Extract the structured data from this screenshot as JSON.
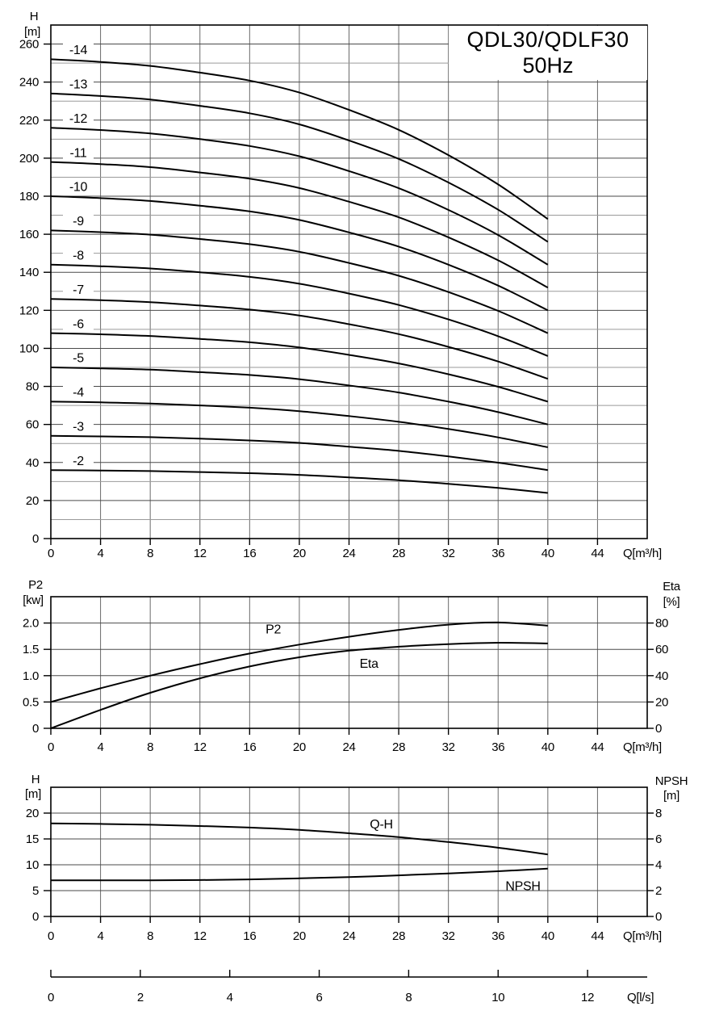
{
  "page": {
    "background": "#ffffff"
  },
  "colors": {
    "curve": "#000000",
    "border": "#000000",
    "grid_major": "#4a4a4a",
    "grid_minor": "#9a9a9a",
    "grid_vertical": "#6a6a6a",
    "tick": "#000000",
    "text": "#000000",
    "title_box_bg": "#ffffff"
  },
  "title": {
    "line1": "QDL30/QDLF30",
    "line2": "50Hz"
  },
  "chart_data": [
    {
      "id": "head-stage-curves",
      "type": "line",
      "title": "QDL30/QDLF30 50Hz",
      "xlabel": "Q[m³/h]",
      "ylabel_title": "H",
      "ylabel_unit": "[m]",
      "xlim": [
        0,
        48
      ],
      "ylim": [
        0,
        270
      ],
      "xticks": [
        0,
        4,
        8,
        12,
        16,
        20,
        24,
        28,
        32,
        36,
        40,
        44
      ],
      "yticks": [
        0,
        20,
        40,
        60,
        80,
        100,
        120,
        140,
        160,
        180,
        200,
        220,
        240,
        260
      ],
      "y_minor_step": 10,
      "grid": true,
      "x": [
        0,
        4,
        8,
        12,
        16,
        20,
        24,
        28,
        32,
        36,
        40
      ],
      "series": [
        {
          "name": "-14",
          "values": [
            252.0,
            250.6,
            248.5,
            245.0,
            240.8,
            234.5,
            225.4,
            214.9,
            201.6,
            186.2,
            168.0
          ]
        },
        {
          "name": "-13",
          "values": [
            234.0,
            232.7,
            230.8,
            227.5,
            223.6,
            217.8,
            209.3,
            199.6,
            187.2,
            172.9,
            156.0
          ]
        },
        {
          "name": "-12",
          "values": [
            216.0,
            214.8,
            213.0,
            210.0,
            206.4,
            201.0,
            193.2,
            184.2,
            172.8,
            159.6,
            144.0
          ]
        },
        {
          "name": "-11",
          "values": [
            198.0,
            196.9,
            195.3,
            192.5,
            189.2,
            184.3,
            177.1,
            168.9,
            158.4,
            146.3,
            132.0
          ]
        },
        {
          "name": "-10",
          "values": [
            180.0,
            179.0,
            177.5,
            175.0,
            172.0,
            167.5,
            161.0,
            153.5,
            144.0,
            133.0,
            120.0
          ]
        },
        {
          "name": "-9",
          "values": [
            162.0,
            161.1,
            159.8,
            157.5,
            154.8,
            150.8,
            144.9,
            138.2,
            129.6,
            119.7,
            108.0
          ]
        },
        {
          "name": "-8",
          "values": [
            144.0,
            143.2,
            142.0,
            140.0,
            137.6,
            134.0,
            128.8,
            122.8,
            115.2,
            106.4,
            96.0
          ]
        },
        {
          "name": "-7",
          "values": [
            126.0,
            125.3,
            124.3,
            122.5,
            120.4,
            117.3,
            112.7,
            107.5,
            100.8,
            93.1,
            84.0
          ]
        },
        {
          "name": "-6",
          "values": [
            108.0,
            107.4,
            106.5,
            105.0,
            103.2,
            100.5,
            96.6,
            92.1,
            86.4,
            79.8,
            72.0
          ]
        },
        {
          "name": "-5",
          "values": [
            90.0,
            89.5,
            88.8,
            87.5,
            86.0,
            83.8,
            80.5,
            76.8,
            72.0,
            66.5,
            60.0
          ]
        },
        {
          "name": "-4",
          "values": [
            72.0,
            71.6,
            71.0,
            70.0,
            68.8,
            67.0,
            64.4,
            61.4,
            57.6,
            53.2,
            48.0
          ]
        },
        {
          "name": "-3",
          "values": [
            54.0,
            53.7,
            53.3,
            52.5,
            51.6,
            50.3,
            48.3,
            46.1,
            43.2,
            39.9,
            36.0
          ]
        },
        {
          "name": "-2",
          "values": [
            36.0,
            35.8,
            35.5,
            35.0,
            34.4,
            33.5,
            32.2,
            30.7,
            28.8,
            26.6,
            24.0
          ]
        }
      ]
    },
    {
      "id": "power-efficiency",
      "type": "line",
      "xlabel": "Q[m³/h]",
      "left_axis": {
        "title": "P2",
        "unit": "[kw]",
        "lim": [
          0,
          2.5
        ],
        "ticks": [
          0,
          0.5,
          1.0,
          1.5,
          2.0
        ],
        "tick_labels": [
          "0",
          "0.5",
          "1.0",
          "1.5",
          "2.0"
        ]
      },
      "right_axis": {
        "title": "Eta",
        "unit": "[%]",
        "lim": [
          0,
          100
        ],
        "ticks": [
          0,
          20,
          40,
          60,
          80
        ],
        "tick_labels": [
          "0",
          "20",
          "40",
          "60",
          "80"
        ]
      },
      "xlim": [
        0,
        48
      ],
      "xticks": [
        0,
        4,
        8,
        12,
        16,
        20,
        24,
        28,
        32,
        36,
        40,
        44
      ],
      "grid": true,
      "x": [
        0,
        4,
        8,
        12,
        16,
        20,
        24,
        28,
        32,
        36,
        40
      ],
      "series": [
        {
          "name": "P2",
          "axis": "left",
          "label_x": 17.9,
          "label_y": 1.88,
          "values": [
            0.5,
            0.76,
            1.0,
            1.22,
            1.42,
            1.59,
            1.74,
            1.87,
            1.97,
            2.01,
            1.95
          ]
        },
        {
          "name": "Eta",
          "axis": "right",
          "label_x": 25.6,
          "label_y": 49.0,
          "values": [
            0,
            14,
            27,
            38,
            47,
            54,
            59,
            62,
            64,
            65,
            64.5
          ]
        }
      ]
    },
    {
      "id": "qh-npsh",
      "type": "line",
      "xlabel": "Q[m³/h]",
      "left_axis": {
        "title": "H",
        "unit": "[m]",
        "lim": [
          0,
          25
        ],
        "ticks": [
          0,
          5,
          10,
          15,
          20
        ],
        "tick_labels": [
          "0",
          "5",
          "10",
          "15",
          "20"
        ]
      },
      "right_axis": {
        "title": "NPSH",
        "unit": "[m]",
        "lim": [
          0,
          10
        ],
        "ticks": [
          0,
          2,
          4,
          6,
          8
        ],
        "tick_labels": [
          "0",
          "2",
          "4",
          "6",
          "8"
        ]
      },
      "xlim": [
        0,
        48
      ],
      "xticks": [
        0,
        4,
        8,
        12,
        16,
        20,
        24,
        28,
        32,
        36,
        40,
        44
      ],
      "grid": true,
      "x": [
        0,
        4,
        8,
        12,
        16,
        20,
        24,
        28,
        32,
        36,
        40
      ],
      "series": [
        {
          "name": "Q-H",
          "axis": "left",
          "label_x": 26.6,
          "label_y": 17.8,
          "values": [
            18.0,
            17.9,
            17.75,
            17.5,
            17.2,
            16.75,
            16.1,
            15.35,
            14.4,
            13.3,
            12.0
          ]
        },
        {
          "name": "NPSH",
          "axis": "right",
          "label_x": 38.0,
          "label_y": 2.35,
          "values": [
            2.8,
            2.8,
            2.8,
            2.82,
            2.87,
            2.95,
            3.05,
            3.18,
            3.33,
            3.5,
            3.7
          ]
        }
      ]
    }
  ],
  "flow_ruler": {
    "unit_label": "Q[l/s]",
    "ticks": [
      0,
      2,
      4,
      6,
      8,
      10,
      12
    ],
    "lps_to_m3h": 3.6
  }
}
